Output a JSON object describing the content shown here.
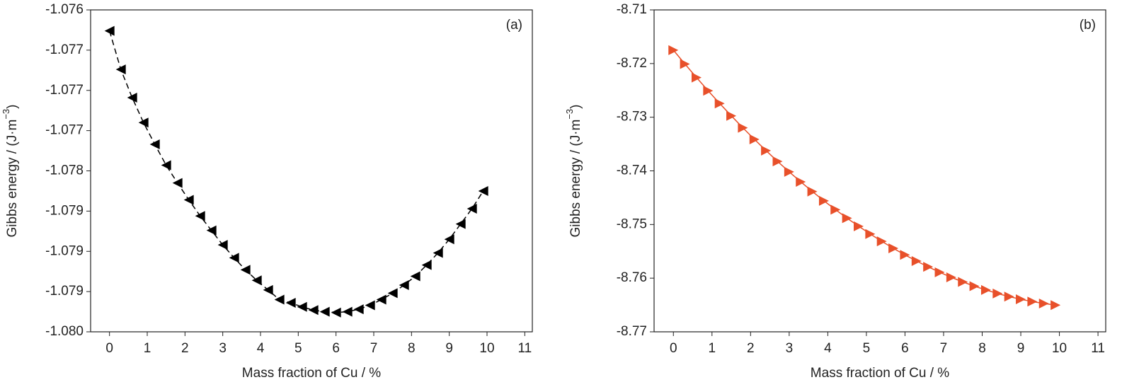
{
  "chart_data": [
    {
      "type": "line",
      "annotation": "(a)",
      "xlabel": "Mass fraction of Cu / %",
      "ylabel": "Gibbs energy / (J·m",
      "ylabel_sup": "−3",
      "ylabel_end": ")",
      "marker": "triangle-left",
      "dashed": true,
      "x": [
        0,
        0.3,
        0.6,
        0.9,
        1.2,
        1.5,
        1.8,
        2.1,
        2.4,
        2.7,
        3.0,
        3.3,
        3.6,
        3.9,
        4.2,
        4.5,
        4.8,
        5.1,
        5.4,
        5.7,
        6.0,
        6.3,
        6.6,
        6.9,
        7.2,
        7.5,
        7.8,
        8.1,
        8.4,
        8.7,
        9.0,
        9.3,
        9.6,
        9.9
      ],
      "series": [
        {
          "color": "#000000",
          "values": [
            -1.07626,
            -1.07674,
            -1.07709,
            -1.0774,
            -1.07767,
            -1.07793,
            -1.07815,
            -1.07836,
            -1.07856,
            -1.07874,
            -1.07892,
            -1.07908,
            -1.07923,
            -1.07936,
            -1.07948,
            -1.0796,
            -1.07964,
            -1.07969,
            -1.07973,
            -1.07975,
            -1.07976,
            -1.07975,
            -1.07972,
            -1.07967,
            -1.0796,
            -1.07952,
            -1.07942,
            -1.07931,
            -1.07917,
            -1.07902,
            -1.07885,
            -1.07866,
            -1.07847,
            -1.07825
          ]
        }
      ],
      "xlim": [
        -0.5,
        11.2
      ],
      "xticks": [
        0,
        1,
        2,
        3,
        4,
        5,
        6,
        7,
        8,
        9,
        10,
        11
      ],
      "ylim": [
        -1.08,
        -1.076
      ],
      "yticks": [
        -1.076,
        {
          "value": -1.0765,
          "label": "-1.077"
        },
        -1.077,
        {
          "value": -1.0775,
          "label": "-1.077"
        },
        -1.078,
        {
          "value": -1.0785,
          "label": "-1.079"
        },
        -1.079,
        {
          "value": -1.0795,
          "label": "-1.079"
        },
        {
          "value": -1.08,
          "label": "-1.080"
        }
      ]
    },
    {
      "type": "line",
      "annotation": "(b)",
      "xlabel": "Mass fraction of Cu / %",
      "ylabel": "Gibbs energy / (J·m",
      "ylabel_sup": "−3",
      "ylabel_end": ")",
      "marker": "triangle-right",
      "dashed": false,
      "x": [
        0,
        0.3,
        0.6,
        0.9,
        1.2,
        1.5,
        1.8,
        2.1,
        2.4,
        2.7,
        3.0,
        3.3,
        3.6,
        3.9,
        4.2,
        4.5,
        4.8,
        5.1,
        5.4,
        5.7,
        6.0,
        6.3,
        6.6,
        6.9,
        7.2,
        7.5,
        7.8,
        8.1,
        8.4,
        8.7,
        9.0,
        9.3,
        9.6,
        9.9
      ],
      "series": [
        {
          "color": "#e8502a",
          "values": [
            -8.7175,
            -8.72009,
            -8.72261,
            -8.72506,
            -8.72744,
            -8.72974,
            -8.73197,
            -8.73413,
            -8.73622,
            -8.73824,
            -8.74018,
            -8.74205,
            -8.74385,
            -8.74558,
            -8.74724,
            -8.74882,
            -8.75033,
            -8.75177,
            -8.75314,
            -8.75444,
            -8.75566,
            -8.75681,
            -8.75789,
            -8.7589,
            -8.75984,
            -8.7607,
            -8.76149,
            -8.76221,
            -8.76286,
            -8.76344,
            -8.76394,
            -8.76437,
            -8.76473,
            -8.76502
          ]
        }
      ],
      "xlim": [
        -0.5,
        11.2
      ],
      "xticks": [
        0,
        1,
        2,
        3,
        4,
        5,
        6,
        7,
        8,
        9,
        10,
        11
      ],
      "ylim": [
        -8.77,
        -8.71
      ],
      "yticks": [
        -8.71,
        -8.72,
        -8.73,
        -8.74,
        -8.75,
        -8.76,
        -8.77
      ]
    }
  ]
}
